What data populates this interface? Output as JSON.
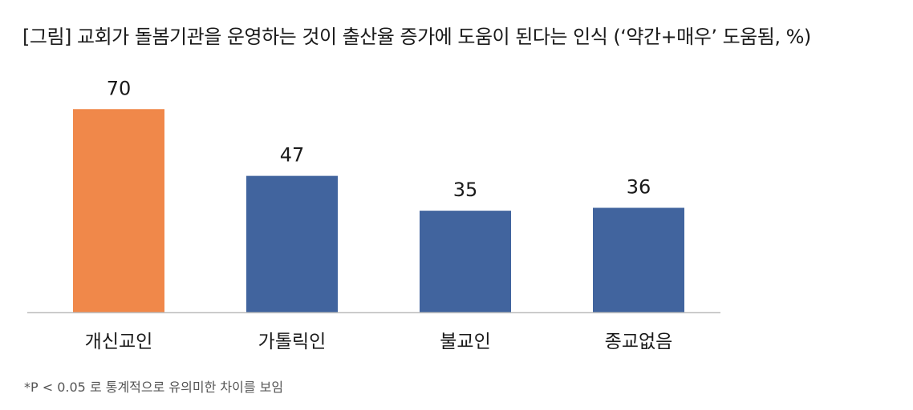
{
  "title": "[그림] 교회가 돌봄기관을 운영하는 것이 출산율 증가에 도움이 된다는 인식 (‘약간+매우’ 도움됨, %)",
  "footnote": "*P < 0.05 로 통계적으로 유의미한 차이를 보임",
  "colors": {
    "highlight": "#F0884A",
    "default": "#41649E",
    "axis": "#BFBFBF"
  },
  "chart_data": {
    "type": "bar",
    "title": "[그림] 교회가 돌봄기관을 운영하는 것이 출산율 증가에 도움이 된다는 인식 (‘약간+매우’ 도움됨, %)",
    "categories": [
      "개신교인",
      "가톨릭인",
      "불교인",
      "종교없음"
    ],
    "values": [
      70,
      47,
      35,
      36
    ],
    "highlight_index": 0,
    "ylim": [
      0,
      80
    ],
    "xlabel": "",
    "ylabel": "",
    "grid": false,
    "data_labels": true
  }
}
